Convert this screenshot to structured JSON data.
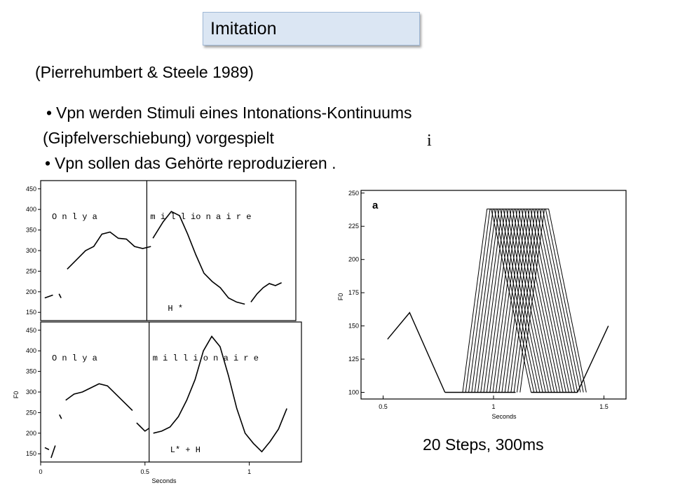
{
  "slide": {
    "title": "Imitation",
    "citation": "(Pierrehumbert & Steele 1989)",
    "bullets": [
      "Vpn werden Stimuli eines Intonations-Kontinuums",
      "(Gipfelverschiebung) vorgespielt",
      "Vpn sollen das Gehörte reproduzieren ."
    ],
    "note_mark": "i",
    "caption": "20 Steps,  300ms"
  },
  "chart_data": [
    {
      "type": "line",
      "panel": "top-left",
      "yticks": [
        150,
        200,
        250,
        300,
        350,
        400,
        450
      ],
      "ylim": [
        130,
        470
      ],
      "xlim": [
        0,
        1.25
      ],
      "words": "O n l y   a",
      "words2": "m i l l io n a i r e",
      "annotation": "H *",
      "boundary_x": 0.52,
      "series": [
        {
          "x": [
            0.02,
            0.06
          ],
          "y": [
            185,
            192
          ]
        },
        {
          "x": [
            0.09,
            0.1
          ],
          "y": [
            195,
            185
          ]
        },
        {
          "x": [
            0.13,
            0.18,
            0.22,
            0.26,
            0.3,
            0.34,
            0.38,
            0.42,
            0.46,
            0.5,
            0.54
          ],
          "y": [
            255,
            280,
            300,
            310,
            340,
            345,
            330,
            328,
            310,
            305,
            310
          ]
        },
        {
          "x": [
            0.55,
            0.6,
            0.64,
            0.68,
            0.72,
            0.76,
            0.8,
            0.84,
            0.88,
            0.92,
            0.96,
            1.0
          ],
          "y": [
            330,
            370,
            395,
            385,
            340,
            290,
            245,
            225,
            210,
            185,
            175,
            170
          ]
        },
        {
          "x": [
            1.03,
            1.06,
            1.09,
            1.12,
            1.15,
            1.18
          ],
          "y": [
            175,
            195,
            210,
            220,
            215,
            222
          ]
        }
      ]
    },
    {
      "type": "line",
      "panel": "bottom-left",
      "yticks": [
        150,
        200,
        250,
        300,
        350,
        400,
        450
      ],
      "ylim": [
        130,
        470
      ],
      "xlim": [
        0,
        1.25
      ],
      "xticks": [
        0,
        0.5,
        1
      ],
      "xtick_labels": [
        "0",
        "0.5",
        "1"
      ],
      "xlabel": "Seconds",
      "ylabel": "F0",
      "words": "O n l y   a",
      "words2": "m i l l i o n a i r e",
      "annotation": "L* + H",
      "boundary_x": 0.52,
      "series": [
        {
          "x": [
            0.02,
            0.04
          ],
          "y": [
            165,
            160
          ]
        },
        {
          "x": [
            0.05,
            0.07
          ],
          "y": [
            140,
            170
          ]
        },
        {
          "x": [
            0.09,
            0.1
          ],
          "y": [
            245,
            235
          ]
        },
        {
          "x": [
            0.12,
            0.16,
            0.2,
            0.24,
            0.28,
            0.32,
            0.36,
            0.4,
            0.44
          ],
          "y": [
            280,
            295,
            300,
            310,
            320,
            315,
            295,
            275,
            255
          ]
        },
        {
          "x": [
            0.46,
            0.48,
            0.5,
            0.52
          ],
          "y": [
            225,
            215,
            205,
            212
          ]
        },
        {
          "x": [
            0.54,
            0.58,
            0.62,
            0.66,
            0.7,
            0.74,
            0.78,
            0.82,
            0.86,
            0.9,
            0.94,
            0.98,
            1.02,
            1.06,
            1.1,
            1.14,
            1.18
          ],
          "y": [
            200,
            205,
            215,
            240,
            280,
            330,
            400,
            435,
            410,
            340,
            260,
            200,
            175,
            155,
            180,
            210,
            260
          ]
        }
      ]
    },
    {
      "type": "line",
      "panel": "right",
      "title": "a",
      "xlabel": "Seconds",
      "ylabel": "F0",
      "xlim": [
        0.4,
        1.6
      ],
      "ylim": [
        95,
        252
      ],
      "xticks": [
        0.5,
        1,
        1.5
      ],
      "xtick_labels": [
        "0.5",
        "1",
        "1.5"
      ],
      "yticks": [
        100,
        125,
        150,
        175,
        200,
        225,
        250
      ],
      "ytick_labels": [
        "100",
        "125",
        "150",
        "175",
        "200",
        "225",
        "250"
      ],
      "steps": 20,
      "step_ms": 300,
      "series": [
        {
          "x": [
            0.52,
            0.62,
            0.78,
            0.86,
            1.0,
            1.1,
            1.15,
            1.3,
            1.38,
            1.52
          ],
          "y": [
            140,
            160,
            100,
            100,
            238,
            238,
            100,
            100,
            100,
            150
          ]
        }
      ]
    }
  ]
}
